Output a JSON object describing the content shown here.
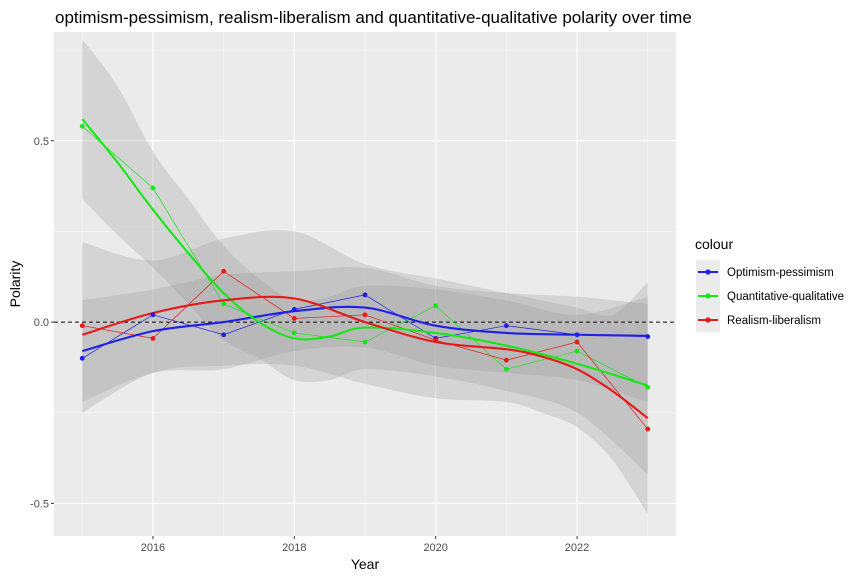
{
  "chart_data": {
    "type": "line",
    "title": "optimism-pessimism, realism-liberalism and quantitative-qualitative polarity over time",
    "xlabel": "Year",
    "ylabel": "Polarity",
    "xlim": [
      2014.6,
      2023.4
    ],
    "ylim": [
      -0.59,
      0.8
    ],
    "x_ticks": [
      2016,
      2018,
      2020,
      2022
    ],
    "y_ticks": [
      -0.5,
      0.0,
      0.5
    ],
    "y_tick_labels": [
      "-0.5",
      "0.0",
      "0.5"
    ],
    "grid": true,
    "reference_line": {
      "y": 0,
      "style": "dashed"
    },
    "legend": {
      "title": "colour",
      "placement": "right"
    },
    "x": [
      2015,
      2016,
      2017,
      2018,
      2019,
      2020,
      2021,
      2022,
      2023
    ],
    "series": [
      {
        "name": "Optimism-pessimism",
        "color": "#1f1fe6",
        "values": [
          -0.1,
          0.02,
          -0.035,
          0.035,
          0.075,
          -0.045,
          -0.01,
          -0.035,
          -0.04
        ],
        "smooth_x": [
          2015,
          2016,
          2017,
          2018,
          2019,
          2020,
          2021,
          2022,
          2023
        ],
        "smooth": [
          -0.08,
          -0.025,
          0.0,
          0.03,
          0.04,
          -0.01,
          -0.03,
          -0.035,
          -0.038
        ],
        "band_inner": [
          [
            -0.22,
            0.06
          ],
          [
            -0.14,
            0.09
          ],
          [
            -0.13,
            0.13
          ],
          [
            -0.08,
            0.14
          ],
          [
            -0.07,
            0.15
          ],
          [
            -0.12,
            0.1
          ],
          [
            -0.14,
            0.08
          ],
          [
            -0.16,
            0.07
          ],
          [
            -0.22,
            0.05
          ]
        ]
      },
      {
        "name": "Quantitative-qualitative",
        "color": "#19e619",
        "values": [
          0.54,
          0.37,
          0.05,
          -0.03,
          -0.055,
          0.045,
          -0.13,
          -0.08,
          -0.18
        ],
        "smooth_x": [
          2015,
          2015.5,
          2016,
          2016.5,
          2017,
          2017.5,
          2018,
          2018.5,
          2019,
          2020,
          2021,
          2022,
          2023
        ],
        "smooth": [
          0.56,
          0.44,
          0.31,
          0.19,
          0.08,
          0.0,
          -0.045,
          -0.04,
          -0.015,
          -0.03,
          -0.065,
          -0.115,
          -0.175
        ],
        "band_inner": [
          [
            0.34,
            0.78
          ],
          [
            0.24,
            0.65
          ],
          [
            0.15,
            0.47
          ],
          [
            0.05,
            0.34
          ],
          [
            -0.05,
            0.21
          ],
          [
            -0.1,
            0.12
          ],
          [
            -0.16,
            0.06
          ],
          [
            -0.16,
            0.07
          ],
          [
            -0.13,
            0.1
          ],
          [
            -0.15,
            0.09
          ],
          [
            -0.19,
            0.06
          ],
          [
            -0.25,
            0.02
          ],
          [
            -0.42,
            0.07
          ]
        ]
      },
      {
        "name": "Realism-liberalism",
        "color": "#e61919",
        "values": [
          -0.01,
          -0.045,
          0.14,
          0.01,
          0.02,
          -0.05,
          -0.105,
          -0.055,
          -0.295
        ],
        "smooth_x": [
          2015,
          2016,
          2017,
          2018,
          2019,
          2020,
          2021,
          2021.5,
          2022,
          2022.5,
          2023
        ],
        "smooth": [
          -0.035,
          0.025,
          0.06,
          0.065,
          0.0,
          -0.055,
          -0.075,
          -0.095,
          -0.13,
          -0.19,
          -0.265
        ],
        "band_inner": [
          [
            -0.25,
            0.22
          ],
          [
            -0.14,
            0.17
          ],
          [
            -0.12,
            0.23
          ],
          [
            -0.12,
            0.25
          ],
          [
            -0.17,
            0.16
          ],
          [
            -0.21,
            0.12
          ],
          [
            -0.22,
            0.08
          ],
          [
            -0.25,
            0.06
          ],
          [
            -0.29,
            0.04
          ],
          [
            -0.38,
            0.02
          ],
          [
            -0.53,
            0.11
          ]
        ]
      }
    ]
  }
}
